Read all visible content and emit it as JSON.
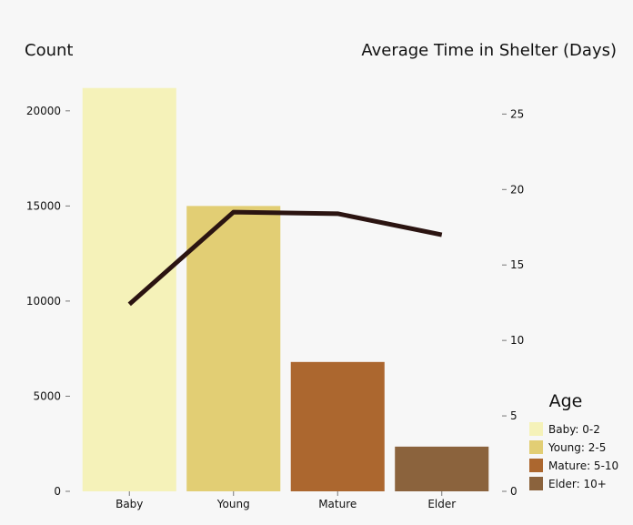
{
  "chart_data": {
    "type": "bar",
    "categories": [
      "Baby",
      "Young",
      "Mature",
      "Elder"
    ],
    "series": [
      {
        "type": "bar",
        "axis": "left",
        "values": [
          21200,
          15000,
          6800,
          2350
        ],
        "colors": [
          "#f5f2b9",
          "#e2ce74",
          "#ac672f",
          "#8b633d"
        ]
      },
      {
        "type": "line",
        "axis": "right",
        "values": [
          12.4,
          18.5,
          18.4,
          17.0
        ],
        "color": "#2b1411"
      }
    ],
    "left_axis": {
      "label": "Count",
      "ylim": [
        0,
        22000
      ],
      "ticks": [
        0,
        5000,
        10000,
        15000,
        20000
      ],
      "tick_labels": [
        "0",
        "5000",
        "10000",
        "15000",
        "20000"
      ]
    },
    "right_axis": {
      "label": "Average Time in Shelter (Days)",
      "ylim": [
        0,
        28
      ],
      "ticks": [
        0,
        5,
        10,
        15,
        20,
        25
      ],
      "tick_labels": [
        "0",
        "5",
        "10",
        "15",
        "20",
        "25"
      ]
    },
    "grid": false,
    "legend": {
      "title": "Age",
      "position": "bottom-right",
      "items": [
        {
          "label": "Baby: 0-2",
          "color": "#f5f2b9"
        },
        {
          "label": "Young: 2-5",
          "color": "#e2ce74"
        },
        {
          "label": "Mature: 5-10",
          "color": "#ac672f"
        },
        {
          "label": "Elder: 10+",
          "color": "#8b633d"
        }
      ]
    }
  }
}
